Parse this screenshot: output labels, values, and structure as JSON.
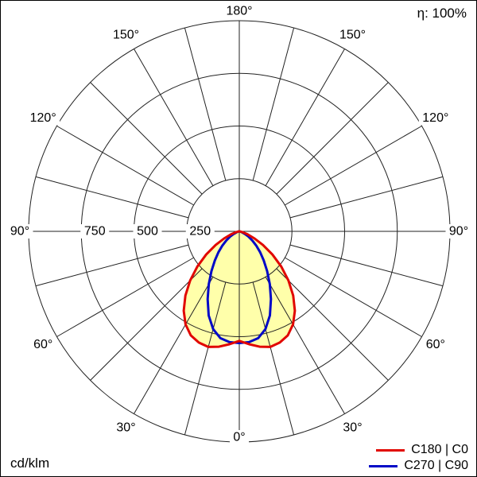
{
  "meta": {
    "efficiency_label": "η: 100%",
    "unit_label": "cd/klm"
  },
  "legend": [
    {
      "label": "C180 | C0",
      "color": "#e10600"
    },
    {
      "label": "C270 | C90",
      "color": "#0008c7"
    }
  ],
  "chart_data": {
    "type": "polar",
    "unit": "cd/klm",
    "efficiency_percent": 100,
    "gamma_ticks_deg": [
      0,
      30,
      60,
      90,
      120,
      150,
      180
    ],
    "gamma_tick_labels": [
      "0°",
      "30°",
      "60°",
      "90°",
      "120°",
      "150°",
      "180°"
    ],
    "radial_ticks": [
      250,
      500,
      750,
      1000
    ],
    "radial_axis_labels": [
      "250",
      "500",
      "750"
    ],
    "r_max": 1000,
    "grid": true,
    "legend_position": "bottom-right",
    "fill_color": "#ffffaa",
    "series": [
      {
        "name": "C180 | C0",
        "color": "#e10600",
        "symmetric": true,
        "gamma_deg": [
          0,
          5,
          10,
          15,
          20,
          25,
          30,
          35,
          40,
          45,
          50,
          55,
          60,
          65,
          70,
          75,
          80,
          85,
          90
        ],
        "values": [
          520,
          538,
          556,
          568,
          562,
          545,
          510,
          460,
          398,
          330,
          260,
          192,
          130,
          80,
          42,
          18,
          6,
          2,
          0
        ]
      },
      {
        "name": "C270 | C90",
        "color": "#0008c7",
        "symmetric": true,
        "gamma_deg": [
          0,
          5,
          10,
          15,
          20,
          25,
          30,
          35,
          40,
          45,
          50,
          55,
          60,
          65,
          70,
          75,
          80,
          85,
          90
        ],
        "values": [
          530,
          528,
          515,
          480,
          425,
          355,
          290,
          230,
          180,
          140,
          105,
          75,
          50,
          30,
          15,
          6,
          2,
          0,
          0
        ]
      }
    ]
  }
}
